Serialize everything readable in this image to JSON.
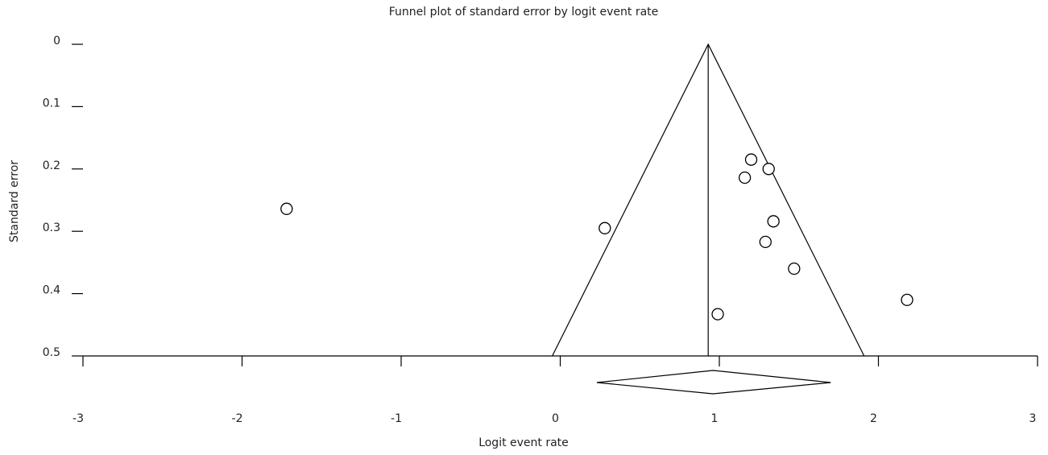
{
  "chart_data": {
    "type": "scatter",
    "title": "Funnel plot of standard error by logit event rate",
    "x_label": "Logit event rate",
    "y_label": "Standard error",
    "x": [
      -1.72,
      0.28,
      1.2,
      1.31,
      1.16,
      1.34,
      1.29,
      1.47,
      2.18,
      0.99
    ],
    "y": [
      0.264,
      0.295,
      0.185,
      0.2,
      0.214,
      0.284,
      0.317,
      0.36,
      0.41,
      0.433
    ],
    "xlim": [
      -3,
      3
    ],
    "xticks": [
      -3,
      -2,
      -1,
      0,
      1,
      2,
      3
    ],
    "ylim": [
      0,
      0.5
    ],
    "yticks": [
      0,
      0.1,
      0.2,
      0.3,
      0.4,
      0.5
    ],
    "y_inverted": true,
    "funnel": {
      "apex": 0.93,
      "base_left": -0.05,
      "base_right": 1.91
    },
    "diamond": {
      "point": 0.96,
      "lower": 0.23,
      "upper": 1.7
    },
    "color": "#000000"
  }
}
